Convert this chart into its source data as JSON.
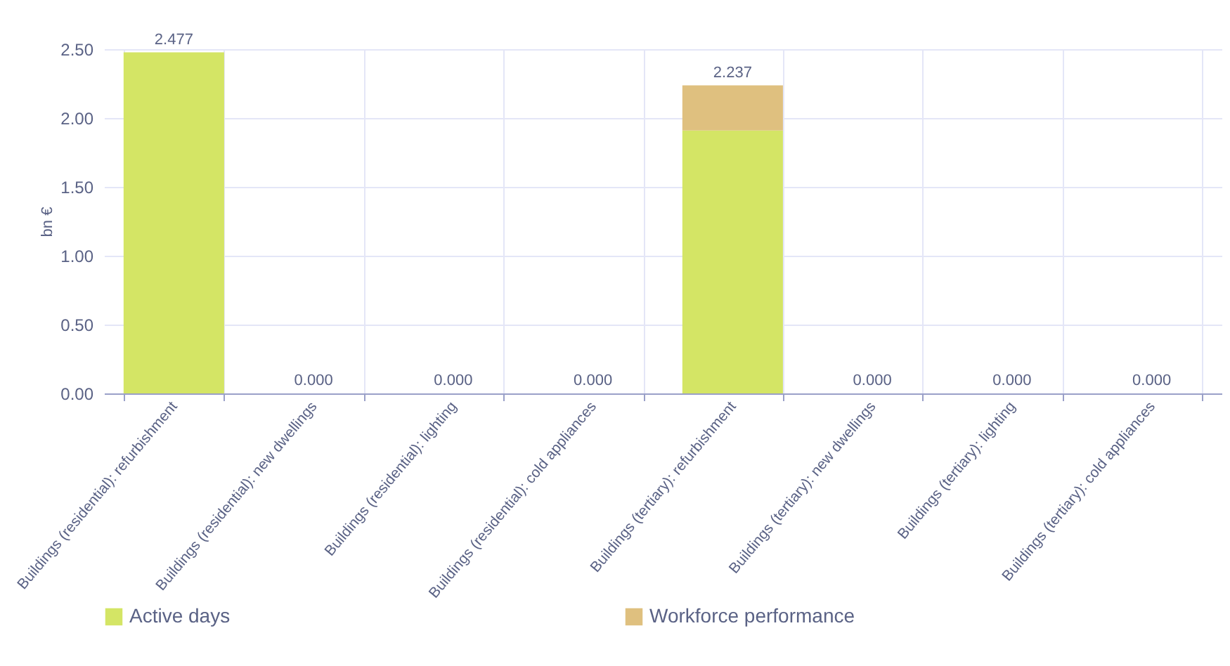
{
  "chart_data": {
    "type": "bar",
    "stacked": true,
    "ylabel": "bn €",
    "categories": [
      "Buildings (residential): refurbishment",
      "Buildings (residential): new dwellings",
      "Buildings (residential): lighting",
      "Buildings (residential): cold appliances",
      "Buildings (tertiary): refurbishment",
      "Buildings (tertiary): new dwellings",
      "Buildings (tertiary): lighting",
      "Buildings (tertiary): cold appliances"
    ],
    "series": [
      {
        "name": "Active days",
        "color": "#d4e565",
        "values": [
          2.477,
          0,
          0,
          0,
          1.91,
          0,
          0,
          0
        ]
      },
      {
        "name": "Workforce performance",
        "color": "#dfc07f",
        "values": [
          0,
          0,
          0,
          0,
          0.327,
          0,
          0,
          0
        ]
      }
    ],
    "totals": [
      "2.477",
      "0.000",
      "0.000",
      "0.000",
      "2.237",
      "0.000",
      "0.000",
      "0.000"
    ],
    "ylim": [
      0,
      2.5
    ],
    "yticks": [
      {
        "value": 0,
        "label": "0.00"
      },
      {
        "value": 0.5,
        "label": "0.50"
      },
      {
        "value": 1,
        "label": "1.00"
      },
      {
        "value": 1.5,
        "label": "1.50"
      },
      {
        "value": 2,
        "label": "2.00"
      },
      {
        "value": 2.5,
        "label": "2.50"
      }
    ],
    "grid": true,
    "legend": "bottom"
  }
}
